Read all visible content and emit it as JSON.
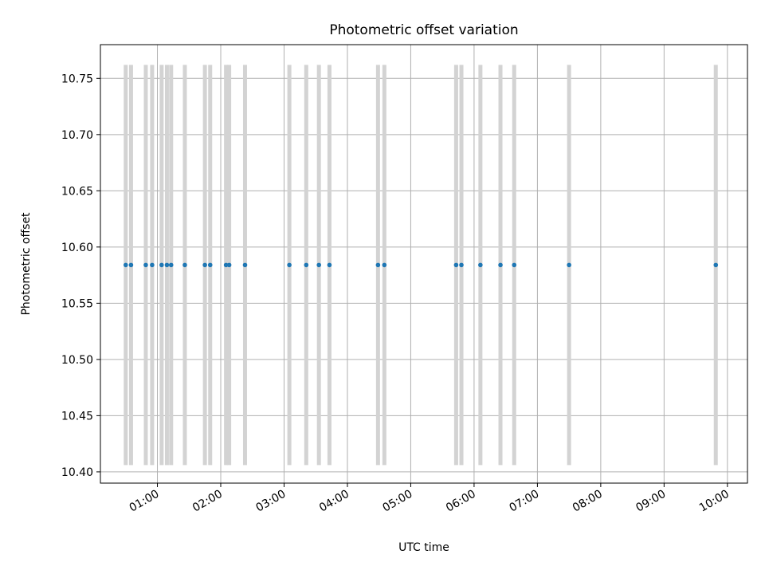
{
  "chart_data": {
    "type": "scatter",
    "title": "Photometric offset variation",
    "xlabel": "UTC time",
    "ylabel": "Photometric offset",
    "xlim": [
      "00:06",
      "10:19"
    ],
    "ylim": [
      10.39,
      10.78
    ],
    "x_tick_labels": [
      "01:00",
      "02:00",
      "03:00",
      "04:00",
      "05:00",
      "06:00",
      "07:00",
      "08:00",
      "09:00",
      "10:00"
    ],
    "y_tick_labels": [
      "10.40",
      "10.45",
      "10.50",
      "10.55",
      "10.60",
      "10.65",
      "10.70",
      "10.75"
    ],
    "grid": true,
    "series": [
      {
        "marker_color": "#1f77b4",
        "errorbar_color": "#d3d3d3",
        "points": [
          {
            "x": "00:30",
            "y": 10.584,
            "yerr_low": 10.406,
            "yerr_high": 10.762
          },
          {
            "x": "00:35",
            "y": 10.584,
            "yerr_low": 10.406,
            "yerr_high": 10.762
          },
          {
            "x": "00:49",
            "y": 10.584,
            "yerr_low": 10.406,
            "yerr_high": 10.762
          },
          {
            "x": "00:55",
            "y": 10.584,
            "yerr_low": 10.406,
            "yerr_high": 10.762
          },
          {
            "x": "01:04",
            "y": 10.584,
            "yerr_low": 10.406,
            "yerr_high": 10.762
          },
          {
            "x": "01:09",
            "y": 10.584,
            "yerr_low": 10.406,
            "yerr_high": 10.762
          },
          {
            "x": "01:13",
            "y": 10.584,
            "yerr_low": 10.406,
            "yerr_high": 10.762
          },
          {
            "x": "01:26",
            "y": 10.584,
            "yerr_low": 10.406,
            "yerr_high": 10.762
          },
          {
            "x": "01:45",
            "y": 10.584,
            "yerr_low": 10.406,
            "yerr_high": 10.762
          },
          {
            "x": "01:50",
            "y": 10.584,
            "yerr_low": 10.406,
            "yerr_high": 10.762
          },
          {
            "x": "02:05",
            "y": 10.584,
            "yerr_low": 10.406,
            "yerr_high": 10.762
          },
          {
            "x": "02:08",
            "y": 10.584,
            "yerr_low": 10.406,
            "yerr_high": 10.762
          },
          {
            "x": "02:23",
            "y": 10.584,
            "yerr_low": 10.406,
            "yerr_high": 10.762
          },
          {
            "x": "03:05",
            "y": 10.584,
            "yerr_low": 10.406,
            "yerr_high": 10.762
          },
          {
            "x": "03:21",
            "y": 10.584,
            "yerr_low": 10.406,
            "yerr_high": 10.762
          },
          {
            "x": "03:33",
            "y": 10.584,
            "yerr_low": 10.406,
            "yerr_high": 10.762
          },
          {
            "x": "03:43",
            "y": 10.584,
            "yerr_low": 10.406,
            "yerr_high": 10.762
          },
          {
            "x": "04:29",
            "y": 10.584,
            "yerr_low": 10.406,
            "yerr_high": 10.762
          },
          {
            "x": "04:35",
            "y": 10.584,
            "yerr_low": 10.406,
            "yerr_high": 10.762
          },
          {
            "x": "05:43",
            "y": 10.584,
            "yerr_low": 10.406,
            "yerr_high": 10.762
          },
          {
            "x": "05:48",
            "y": 10.584,
            "yerr_low": 10.406,
            "yerr_high": 10.762
          },
          {
            "x": "06:06",
            "y": 10.584,
            "yerr_low": 10.406,
            "yerr_high": 10.762
          },
          {
            "x": "06:25",
            "y": 10.584,
            "yerr_low": 10.406,
            "yerr_high": 10.762
          },
          {
            "x": "06:38",
            "y": 10.584,
            "yerr_low": 10.406,
            "yerr_high": 10.762
          },
          {
            "x": "07:30",
            "y": 10.584,
            "yerr_low": 10.406,
            "yerr_high": 10.762
          },
          {
            "x": "09:49",
            "y": 10.584,
            "yerr_low": 10.406,
            "yerr_high": 10.762
          }
        ]
      }
    ]
  }
}
